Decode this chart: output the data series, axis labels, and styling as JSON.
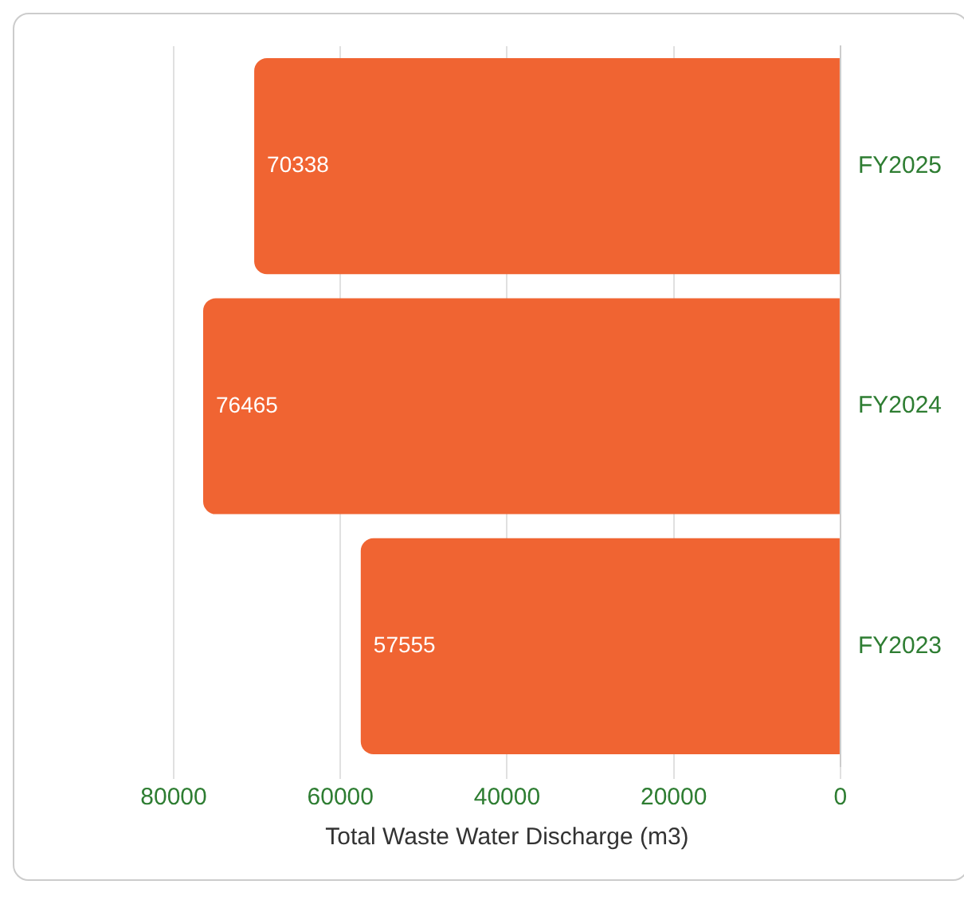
{
  "chart_data": {
    "type": "bar",
    "orientation": "horizontal",
    "xlabel": "Total Waste Water Discharge (m3)",
    "categories": [
      "FY2025",
      "FY2024",
      "FY2023"
    ],
    "series": [
      {
        "color": "#f06432",
        "values": [
          70338,
          76465,
          57555
        ]
      }
    ],
    "xlim": [
      80000,
      0
    ],
    "xticks": [
      80000,
      60000,
      40000,
      20000,
      0
    ],
    "grid": "x",
    "data_labels": true
  }
}
